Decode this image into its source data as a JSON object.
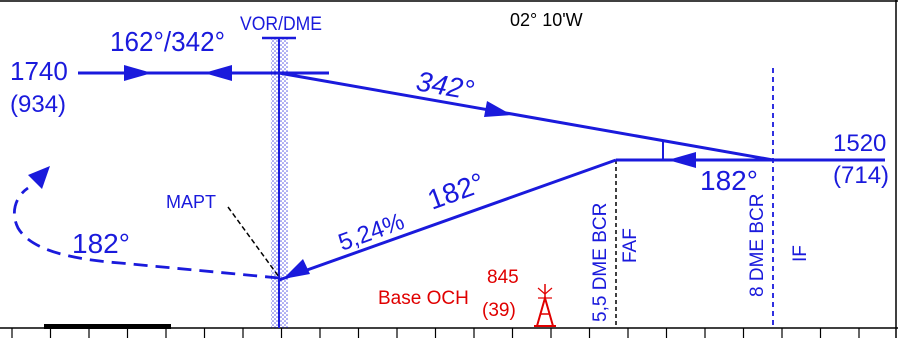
{
  "header": {
    "vor_dme": "VOR/DME",
    "variation": "02° 10'W"
  },
  "left_fix": {
    "altitude": "1740",
    "height": "(934)"
  },
  "right_fix": {
    "altitude": "1520",
    "height": "(714)"
  },
  "tracks": {
    "inbound": "162°/342°",
    "outbound": "342°",
    "intermediate": "182°",
    "final": "182°",
    "missed": "182°"
  },
  "gradient": "5,24%",
  "labels": {
    "mapt": "MAPT",
    "faf": "FAF",
    "faf_dme": "5,5 DME BCR",
    "if": "IF",
    "if_dme": "8 DME BCR",
    "base_och": "Base OCH"
  },
  "obstacle": {
    "elevation": "845",
    "height": "(39)"
  },
  "colors": {
    "route": "#1a1adc",
    "obstacle": "#e00000",
    "frame": "#000000",
    "station": "#7b8fe6"
  }
}
